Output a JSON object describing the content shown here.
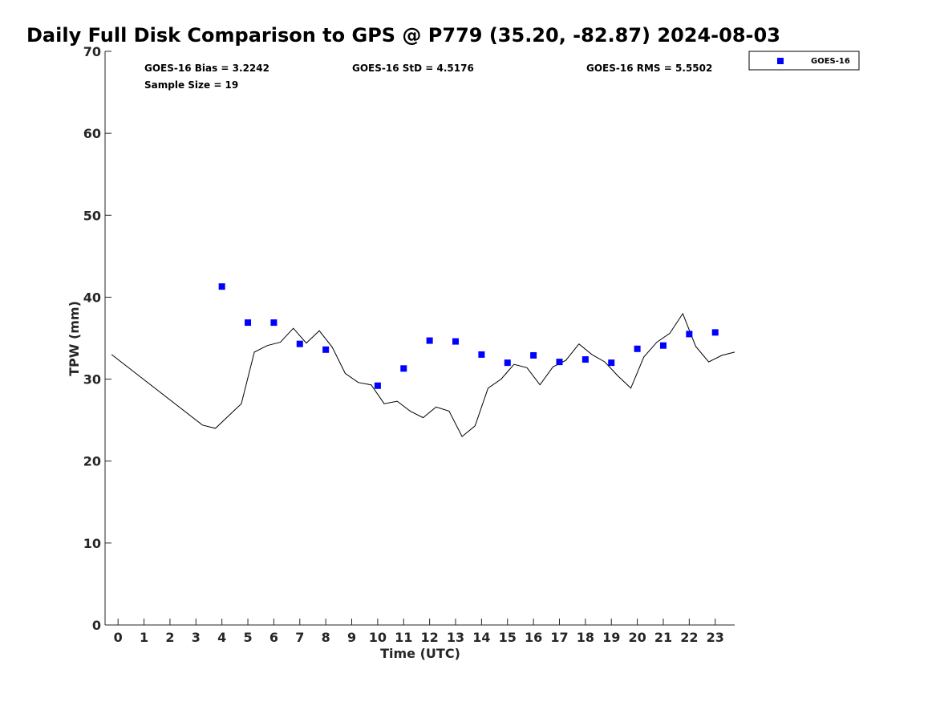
{
  "chart_data": {
    "type": "line",
    "title": "Daily Full Disk Comparison to GPS @ P779 (35.20, -82.87) 2024-08-03",
    "xlabel": "Time (UTC)",
    "ylabel": "TPW (mm)",
    "xlim": [
      -0.5,
      23.75
    ],
    "ylim": [
      0,
      70
    ],
    "xticks": [
      0,
      1,
      2,
      3,
      4,
      5,
      6,
      7,
      8,
      9,
      10,
      11,
      12,
      13,
      14,
      15,
      16,
      17,
      18,
      19,
      20,
      21,
      22,
      23
    ],
    "yticks": [
      0,
      10,
      20,
      30,
      40,
      50,
      60,
      70
    ],
    "grid": false,
    "legend_position": "top-right-outside",
    "stats": {
      "bias": "GOES-16 Bias = 3.2242",
      "std": "GOES-16 StD = 4.5176",
      "rms": "GOES-16 RMS = 5.5502",
      "sample": "Sample Size = 19"
    },
    "series": [
      {
        "kind": "line",
        "color": "#000000",
        "x": [
          -0.25,
          3.25,
          3.75,
          4.75,
          5.25,
          5.75,
          6.25,
          6.75,
          7.25,
          7.75,
          8.25,
          8.75,
          9.25,
          9.75,
          10.25,
          10.75,
          11.25,
          11.75,
          12.25,
          12.75,
          13.25,
          13.75,
          14.25,
          14.75,
          15.25,
          15.75,
          16.25,
          16.75,
          17.25,
          17.75,
          18.25,
          18.75,
          19.25,
          19.75,
          20.25,
          20.75,
          21.25,
          21.75,
          22.25,
          22.75,
          23.25,
          23.75
        ],
        "y": [
          33.0,
          24.4,
          24.0,
          27.0,
          33.3,
          34.1,
          34.5,
          36.2,
          34.4,
          35.9,
          33.9,
          30.7,
          29.6,
          29.3,
          27.0,
          27.3,
          26.1,
          25.3,
          26.6,
          26.1,
          23.0,
          24.3,
          28.9,
          30.0,
          31.8,
          31.4,
          29.3,
          31.5,
          32.3,
          34.3,
          33.0,
          32.1,
          30.4,
          28.9,
          32.7,
          34.5,
          35.6,
          38.0,
          34.0,
          32.1,
          32.9,
          33.3
        ]
      },
      {
        "kind": "scatter",
        "name": "GOES-16",
        "color": "#0000ff",
        "x": [
          4,
          5,
          6,
          7,
          8,
          10,
          11,
          12,
          13,
          14,
          15,
          16,
          17,
          18,
          19,
          20,
          21,
          22,
          23
        ],
        "y": [
          41.3,
          36.9,
          36.9,
          34.3,
          33.6,
          29.2,
          31.3,
          34.7,
          34.6,
          33.0,
          32.0,
          32.9,
          32.1,
          32.4,
          32.0,
          33.7,
          34.1,
          35.5,
          35.7
        ]
      }
    ]
  }
}
